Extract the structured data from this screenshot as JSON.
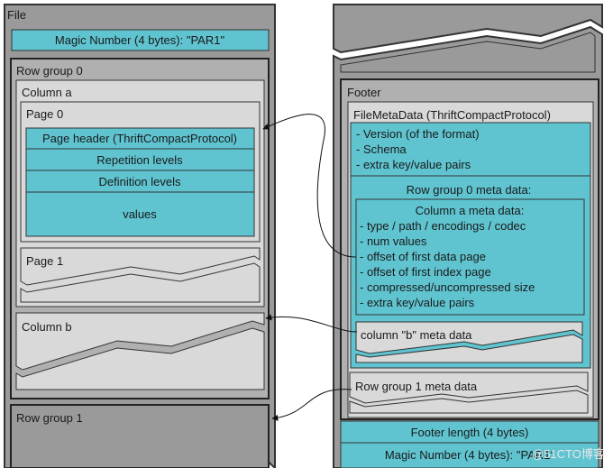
{
  "colors": {
    "cyan": "#5fc4d0",
    "dark_gray": "#9a9a9a",
    "mid_gray": "#b0b0b0",
    "light_gray": "#d9d9d9",
    "outline": "#333333"
  },
  "file": {
    "label": "File",
    "magic": "Magic Number (4 bytes): \"PAR1\"",
    "row_group_0": {
      "label": "Row group 0",
      "column_a": {
        "label": "Column a",
        "page_0": {
          "label": "Page 0",
          "sections": [
            "Page header (ThriftCompactProtocol)",
            "Repetition levels",
            "Definition levels",
            "values"
          ]
        },
        "page_1": "Page 1"
      },
      "column_b": "Column b"
    },
    "row_group_1": "Row group 1"
  },
  "footer": {
    "label": "Footer",
    "file_metadata": {
      "label": "FileMetaData (ThriftCompactProtocol)",
      "fields": [
        "- Version (of the format)",
        "- Schema",
        "- extra key/value pairs"
      ],
      "row_group_0_meta": {
        "label": "Row group 0 meta data:",
        "column_a_meta": {
          "label": "Column a meta data:",
          "fields": [
            "- type / path / encodings /  codec",
            "- num values",
            "- offset of first data page",
            "- offset of first index page",
            "- compressed/uncompressed size",
            "- extra key/value pairs"
          ]
        },
        "column_b_meta": "column \"b\" meta data"
      },
      "row_group_1_meta": "Row group 1 meta data"
    },
    "footer_length": "Footer length (4 bytes)",
    "magic": "Magic Number (4 bytes): \"PAR1\""
  },
  "watermark": "@51CTO博客"
}
